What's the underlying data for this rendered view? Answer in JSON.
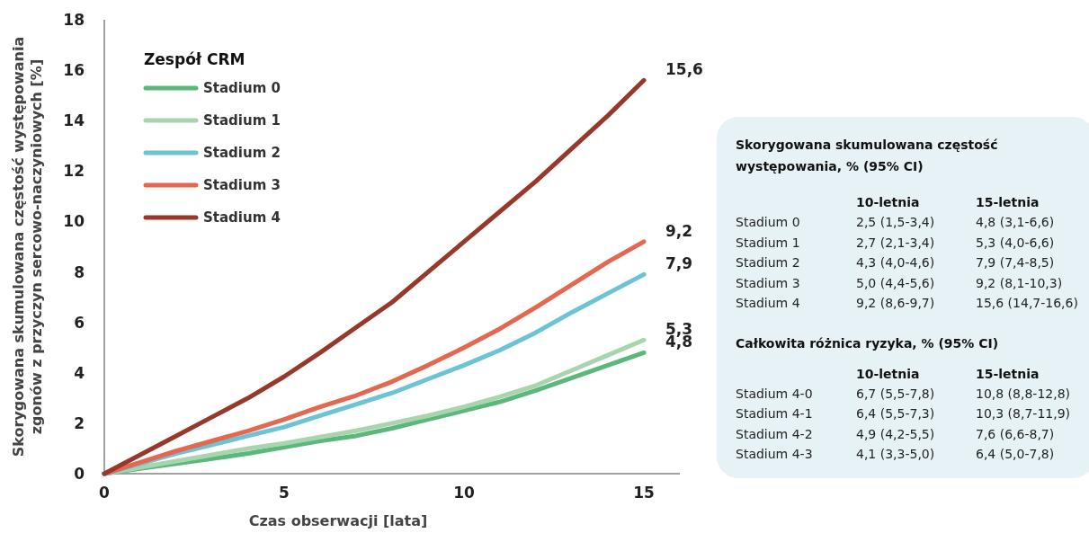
{
  "chart_data": [
    {
      "type": "line",
      "xlabel": "Czas obserwacji [lata]",
      "ylabel": "Skorygowana skumulowana częstość występowania zgonów z przyczyn sercowo-naczyniowych [%]",
      "legend_title": "Zespół CRM",
      "legend": "top left",
      "grid": false,
      "marker": "none",
      "line_style": "solid",
      "x": [
        0,
        1,
        2,
        3,
        4,
        5,
        6,
        7,
        8,
        9,
        10,
        11,
        12,
        13,
        14,
        15
      ],
      "xlim": [
        0,
        16
      ],
      "xticks": [
        0,
        5,
        10,
        15
      ],
      "ylim": [
        0,
        18
      ],
      "yticks": [
        0,
        2,
        4,
        6,
        8,
        10,
        12,
        14,
        16,
        18
      ],
      "series": [
        {
          "name": "Stadium 0",
          "color": "#5cb87a",
          "values": [
            0,
            0.2,
            0.4,
            0.6,
            0.8,
            1.05,
            1.3,
            1.5,
            1.8,
            2.15,
            2.5,
            2.85,
            3.3,
            3.8,
            4.3,
            4.8
          ],
          "value_labels": [
            null,
            null,
            null,
            null,
            null,
            null,
            null,
            null,
            null,
            null,
            null,
            null,
            null,
            null,
            null,
            "4,8"
          ]
        },
        {
          "name": "Stadium 1",
          "color": "#a8d5b0",
          "values": [
            0,
            0.25,
            0.5,
            0.75,
            1.0,
            1.2,
            1.45,
            1.7,
            2.0,
            2.3,
            2.65,
            3.05,
            3.5,
            4.1,
            4.7,
            5.3
          ],
          "value_labels": [
            null,
            null,
            null,
            null,
            null,
            null,
            null,
            null,
            null,
            null,
            null,
            null,
            null,
            null,
            null,
            "5,3"
          ]
        },
        {
          "name": "Stadium 2",
          "color": "#6cc3d5",
          "values": [
            0,
            0.4,
            0.8,
            1.15,
            1.5,
            1.85,
            2.3,
            2.75,
            3.2,
            3.75,
            4.3,
            4.9,
            5.6,
            6.4,
            7.15,
            7.9
          ],
          "value_labels": [
            null,
            null,
            null,
            null,
            null,
            null,
            null,
            null,
            null,
            null,
            null,
            null,
            null,
            null,
            null,
            "7,9"
          ]
        },
        {
          "name": "Stadium 3",
          "color": "#e4674f",
          "values": [
            0,
            0.45,
            0.9,
            1.3,
            1.7,
            2.15,
            2.65,
            3.1,
            3.65,
            4.3,
            5.0,
            5.75,
            6.6,
            7.5,
            8.4,
            9.2
          ],
          "value_labels": [
            null,
            null,
            null,
            null,
            null,
            null,
            null,
            null,
            null,
            null,
            null,
            null,
            null,
            null,
            null,
            "9,2"
          ]
        },
        {
          "name": "Stadium 4",
          "color": "#97382a",
          "values": [
            0,
            0.75,
            1.5,
            2.25,
            3.0,
            3.85,
            4.8,
            5.8,
            6.8,
            8.0,
            9.2,
            10.4,
            11.6,
            12.9,
            14.2,
            15.6
          ],
          "value_labels": [
            null,
            null,
            null,
            null,
            null,
            null,
            null,
            null,
            null,
            null,
            null,
            null,
            null,
            null,
            null,
            "15,6"
          ]
        }
      ]
    },
    {
      "type": "other",
      "title": "Skorygowana skumulowana częstość występowania, % (95% CI)",
      "annotations": [
        "10-letnia",
        "15-letnia",
        "Stadium 0",
        "2,5 (1,5-3,4)",
        "4,8 (3,1-6,6)",
        "Stadium 1",
        "2,7 (2,1-3,4)",
        "5,3 (4,0-6,6)",
        "Stadium 2",
        "4,3 (4,0-4,6)",
        "7,9 (7,4-8,5)",
        "Stadium 3",
        "5,0 (4,4-5,6)",
        "9,2 (8,1-10,3)",
        "Stadium 4",
        "9,2 (8,6-9,7)",
        "15,6 (14,7-16,6)",
        "Całkowita różnica ryzyka, % (95% CI)",
        "10-letnia",
        "15-letnia",
        "Stadium 4-0",
        "6,7 (5,5-7,8)",
        "10,8 (8,8-12,8)",
        "Stadium 4-1",
        "6,4 (5,5-7,3)",
        "10,3 (8,7-11,9)",
        "Stadium 4-2",
        "4,9 (4,2-5,5)",
        "7,6 (6,6-8,7)",
        "Stadium 4-3",
        "4,1 (3,3-5,0)",
        "6,4 (5,0-7,8)"
      ]
    }
  ]
}
